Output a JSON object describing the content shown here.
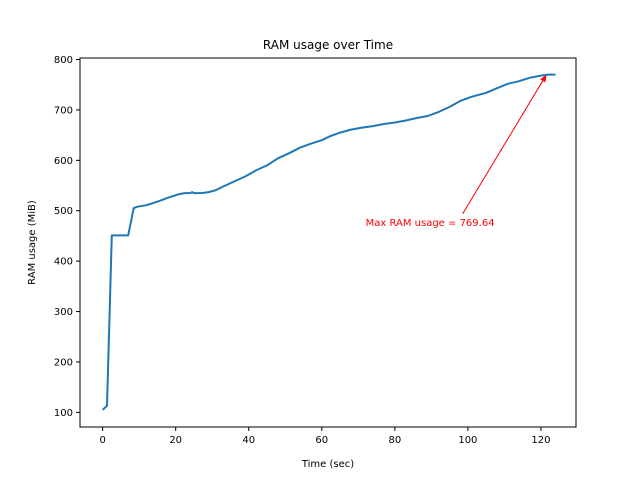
{
  "chart_data": {
    "type": "line",
    "title": "RAM usage over Time",
    "xlabel": "Time (sec)",
    "ylabel": "RAM usage (MiB)",
    "xlim": [
      -6.2,
      129.6
    ],
    "ylim": [
      71,
      803
    ],
    "xticks": [
      0,
      20,
      40,
      60,
      80,
      100,
      120
    ],
    "yticks": [
      100,
      200,
      300,
      400,
      500,
      600,
      700,
      800
    ],
    "grid": false,
    "legend": "none",
    "line_color": "#1f77b4",
    "series": [
      {
        "x": [
          0,
          1.2,
          2.5,
          4,
          5.5,
          7,
          8.5,
          9.5,
          12,
          15,
          18,
          21,
          22.5,
          24,
          24.5,
          25,
          27,
          29,
          31,
          33,
          36,
          39,
          42,
          45,
          48,
          51,
          54,
          57,
          60,
          62,
          65,
          68,
          71,
          74,
          77,
          80,
          83,
          86,
          89,
          92,
          95,
          98,
          101,
          105,
          108,
          111,
          114,
          117,
          120,
          122,
          124
        ],
        "y": [
          105,
          113,
          451,
          451,
          451,
          451,
          505,
          508,
          511,
          518,
          526,
          533,
          535,
          535,
          537,
          535,
          535,
          537,
          541,
          548,
          558,
          568,
          580,
          590,
          604,
          614,
          625,
          633,
          640,
          647,
          655,
          661,
          665,
          668,
          672,
          675,
          679,
          684,
          688,
          696,
          706,
          718,
          726,
          734,
          743,
          752,
          757,
          764,
          768,
          770,
          770
        ]
      }
    ],
    "annotation": {
      "text": "Max RAM usage = 769.64",
      "color": "#ff0000",
      "text_at": [
        72,
        470
      ],
      "arrow_to": [
        121.5,
        769.64
      ]
    }
  }
}
